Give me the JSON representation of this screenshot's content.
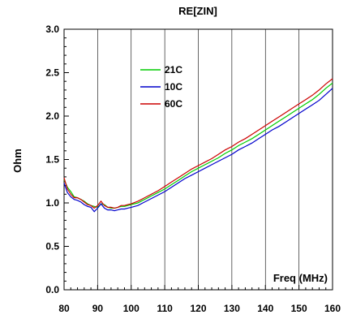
{
  "chart_data": {
    "type": "line",
    "title": "RE[ZIN]",
    "xlabel": "Freq (MHz)",
    "ylabel": "Ohm",
    "xlim": [
      80,
      160
    ],
    "ylim": [
      0.0,
      3.0
    ],
    "x_ticks": [
      80,
      90,
      100,
      110,
      120,
      130,
      140,
      150,
      160
    ],
    "y_ticks": [
      0.0,
      0.5,
      1.0,
      1.5,
      2.0,
      2.5,
      3.0
    ],
    "y_tick_labels": [
      "0.0",
      "0.5",
      "1.0",
      "1.5",
      "2.0",
      "2.5",
      "3.0"
    ],
    "grid": "vertical",
    "legend_position": "upper-middle",
    "series": [
      {
        "name": "21C",
        "color": "#00cc00",
        "x": [
          80,
          81,
          82,
          83,
          84,
          85,
          86,
          87,
          88,
          89,
          90,
          91,
          92,
          93,
          94,
          95,
          96,
          97,
          98,
          99,
          100,
          102,
          104,
          106,
          108,
          110,
          112,
          114,
          116,
          118,
          120,
          122,
          124,
          126,
          128,
          130,
          132,
          134,
          136,
          138,
          140,
          142,
          144,
          146,
          148,
          150,
          152,
          154,
          156,
          158,
          160
        ],
        "values": [
          1.27,
          1.18,
          1.13,
          1.07,
          1.06,
          1.04,
          1.02,
          0.99,
          0.97,
          0.96,
          0.95,
          0.99,
          0.98,
          0.95,
          0.94,
          0.94,
          0.95,
          0.96,
          0.96,
          0.97,
          0.98,
          1.0,
          1.04,
          1.08,
          1.12,
          1.16,
          1.21,
          1.26,
          1.31,
          1.36,
          1.4,
          1.44,
          1.48,
          1.52,
          1.57,
          1.61,
          1.66,
          1.7,
          1.74,
          1.79,
          1.84,
          1.89,
          1.94,
          1.99,
          2.04,
          2.09,
          2.14,
          2.19,
          2.25,
          2.32,
          2.38
        ]
      },
      {
        "name": "10C",
        "color": "#0000cc",
        "x": [
          80,
          81,
          82,
          83,
          84,
          85,
          86,
          87,
          88,
          89,
          90,
          91,
          92,
          93,
          94,
          95,
          96,
          97,
          98,
          99,
          100,
          102,
          104,
          106,
          108,
          110,
          112,
          114,
          116,
          118,
          120,
          122,
          124,
          126,
          128,
          130,
          132,
          134,
          136,
          138,
          140,
          142,
          144,
          146,
          148,
          150,
          152,
          154,
          156,
          158,
          160
        ],
        "values": [
          1.23,
          1.12,
          1.07,
          1.04,
          1.03,
          1.01,
          0.98,
          0.96,
          0.95,
          0.9,
          0.94,
          0.99,
          0.94,
          0.92,
          0.92,
          0.91,
          0.92,
          0.93,
          0.93,
          0.94,
          0.95,
          0.97,
          1.01,
          1.05,
          1.09,
          1.13,
          1.18,
          1.23,
          1.28,
          1.32,
          1.36,
          1.4,
          1.44,
          1.48,
          1.52,
          1.56,
          1.61,
          1.65,
          1.69,
          1.74,
          1.79,
          1.84,
          1.88,
          1.93,
          1.98,
          2.03,
          2.08,
          2.13,
          2.18,
          2.25,
          2.32
        ]
      },
      {
        "name": "60C",
        "color": "#cc0000",
        "x": [
          80,
          81,
          82,
          83,
          84,
          85,
          86,
          87,
          88,
          89,
          90,
          91,
          92,
          93,
          94,
          95,
          96,
          97,
          98,
          99,
          100,
          102,
          104,
          106,
          108,
          110,
          112,
          114,
          116,
          118,
          120,
          122,
          124,
          126,
          128,
          130,
          132,
          134,
          136,
          138,
          140,
          142,
          144,
          146,
          148,
          150,
          152,
          154,
          156,
          158,
          160
        ],
        "values": [
          1.29,
          1.16,
          1.1,
          1.06,
          1.06,
          1.04,
          1.01,
          0.98,
          0.97,
          0.94,
          0.97,
          1.02,
          0.97,
          0.95,
          0.95,
          0.94,
          0.95,
          0.97,
          0.97,
          0.98,
          0.99,
          1.02,
          1.06,
          1.1,
          1.14,
          1.19,
          1.24,
          1.29,
          1.34,
          1.39,
          1.43,
          1.47,
          1.51,
          1.56,
          1.61,
          1.65,
          1.7,
          1.74,
          1.79,
          1.84,
          1.89,
          1.94,
          1.99,
          2.04,
          2.09,
          2.14,
          2.19,
          2.24,
          2.3,
          2.37,
          2.43
        ]
      }
    ]
  }
}
